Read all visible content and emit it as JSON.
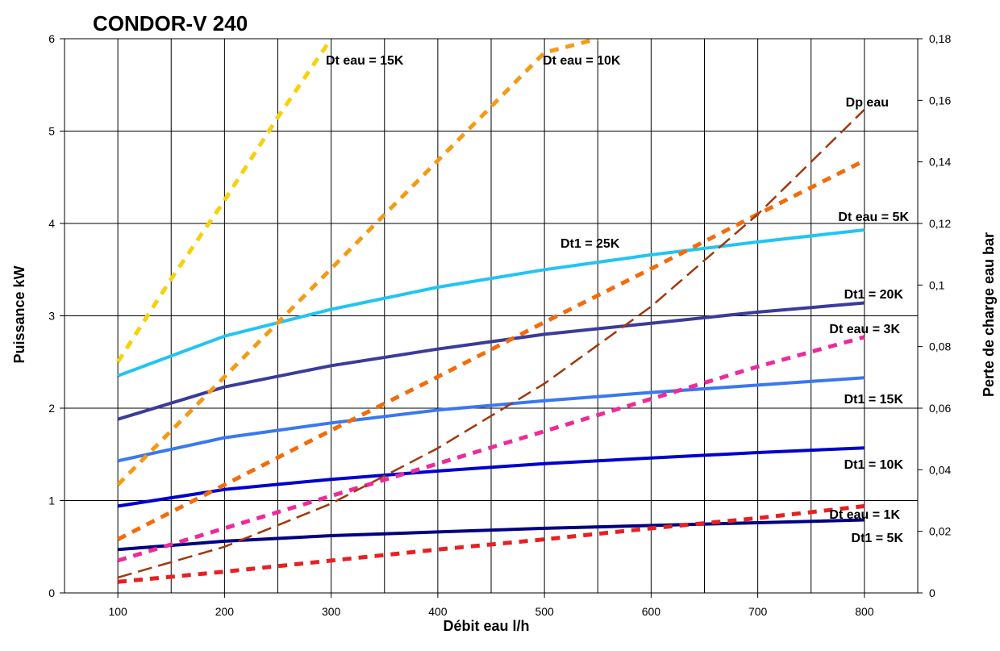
{
  "chart_data": {
    "type": "line",
    "title": "CONDOR-V 240",
    "xlabel": "Débit eau   l/h",
    "ylabel": "Puissance   kW",
    "y2label": "Perte de charge eau   bar",
    "x_ticks": [
      "100",
      "200",
      "300",
      "400",
      "500",
      "600",
      "700",
      "800"
    ],
    "y_ticks": [
      "0",
      "1",
      "2",
      "3",
      "4",
      "5",
      "6"
    ],
    "y2_ticks": [
      "0",
      "0,02",
      "0,04",
      "0,06",
      "0,08",
      "0,1",
      "0,12",
      "0,14",
      "0,16",
      "0,18"
    ],
    "xlim": [
      50,
      850
    ],
    "ylim": [
      0,
      6
    ],
    "y2lim": [
      0,
      0.18
    ],
    "grid": true,
    "series": [
      {
        "name": "Dt1 = 5K",
        "style": "solid",
        "axis": "left",
        "color": "#000080",
        "x": [
          100,
          200,
          300,
          400,
          500,
          600,
          700,
          800
        ],
        "values": [
          0.47,
          0.56,
          0.62,
          0.66,
          0.7,
          0.73,
          0.76,
          0.79
        ]
      },
      {
        "name": "Dt1 = 10K",
        "style": "solid",
        "axis": "left",
        "color": "#0000CC",
        "x": [
          100,
          200,
          300,
          400,
          500,
          600,
          700,
          800
        ],
        "values": [
          0.94,
          1.12,
          1.23,
          1.32,
          1.4,
          1.46,
          1.52,
          1.57
        ]
      },
      {
        "name": "Dt1 = 15K",
        "style": "solid",
        "axis": "left",
        "color": "#3A78F0",
        "x": [
          100,
          200,
          300,
          400,
          500,
          600,
          700,
          800
        ],
        "values": [
          1.43,
          1.68,
          1.84,
          1.98,
          2.08,
          2.17,
          2.25,
          2.33
        ]
      },
      {
        "name": "Dt1 = 20K",
        "style": "solid",
        "axis": "left",
        "color": "#3B3B9A",
        "x": [
          100,
          200,
          300,
          400,
          500,
          600,
          700,
          800
        ],
        "values": [
          1.88,
          2.23,
          2.46,
          2.64,
          2.8,
          2.92,
          3.04,
          3.14
        ]
      },
      {
        "name": "Dt1 = 25K",
        "style": "solid",
        "axis": "left",
        "color": "#22C4F2",
        "x": [
          100,
          200,
          300,
          400,
          500,
          600,
          700,
          800
        ],
        "values": [
          2.35,
          2.78,
          3.07,
          3.31,
          3.5,
          3.66,
          3.8,
          3.93
        ]
      },
      {
        "name": "Dt eau = 1K",
        "style": "dotted",
        "axis": "left",
        "color": "#E82020",
        "x": [
          100,
          200,
          300,
          400,
          500,
          600,
          700,
          800
        ],
        "values": [
          0.12,
          0.23,
          0.35,
          0.47,
          0.58,
          0.7,
          0.81,
          0.94
        ]
      },
      {
        "name": "Dt eau = 3K",
        "style": "dotted",
        "axis": "left",
        "color": "#EE2A9A",
        "x": [
          100,
          200,
          300,
          400,
          500,
          600,
          700,
          800
        ],
        "values": [
          0.35,
          0.7,
          1.05,
          1.4,
          1.75,
          2.1,
          2.45,
          2.77
        ]
      },
      {
        "name": "Dt eau = 5K",
        "style": "dotted",
        "axis": "left",
        "color": "#F26B0C",
        "x": [
          100,
          200,
          300,
          400,
          500,
          600,
          700,
          800
        ],
        "values": [
          0.58,
          1.17,
          1.76,
          2.34,
          2.93,
          3.51,
          4.1,
          4.68
        ]
      },
      {
        "name": "Dt eau = 10K",
        "style": "dotted",
        "axis": "left",
        "color": "#F59A16",
        "x": [
          100,
          200,
          300,
          400,
          500,
          550
        ],
        "values": [
          1.17,
          2.34,
          3.51,
          4.68,
          5.85,
          6.0
        ]
      },
      {
        "name": "Dt eau = 15K",
        "style": "dotted",
        "axis": "left",
        "color": "#F7D10C",
        "x": [
          100,
          150,
          200,
          250,
          300
        ],
        "values": [
          2.5,
          3.4,
          4.25,
          5.15,
          6.0
        ]
      },
      {
        "name": "Dp eau",
        "style": "dashed",
        "axis": "right",
        "color": "#A0380E",
        "x": [
          100,
          200,
          300,
          400,
          500,
          600,
          700,
          800
        ],
        "values": [
          0.005,
          0.015,
          0.029,
          0.047,
          0.068,
          0.093,
          0.123,
          0.157
        ]
      }
    ]
  }
}
